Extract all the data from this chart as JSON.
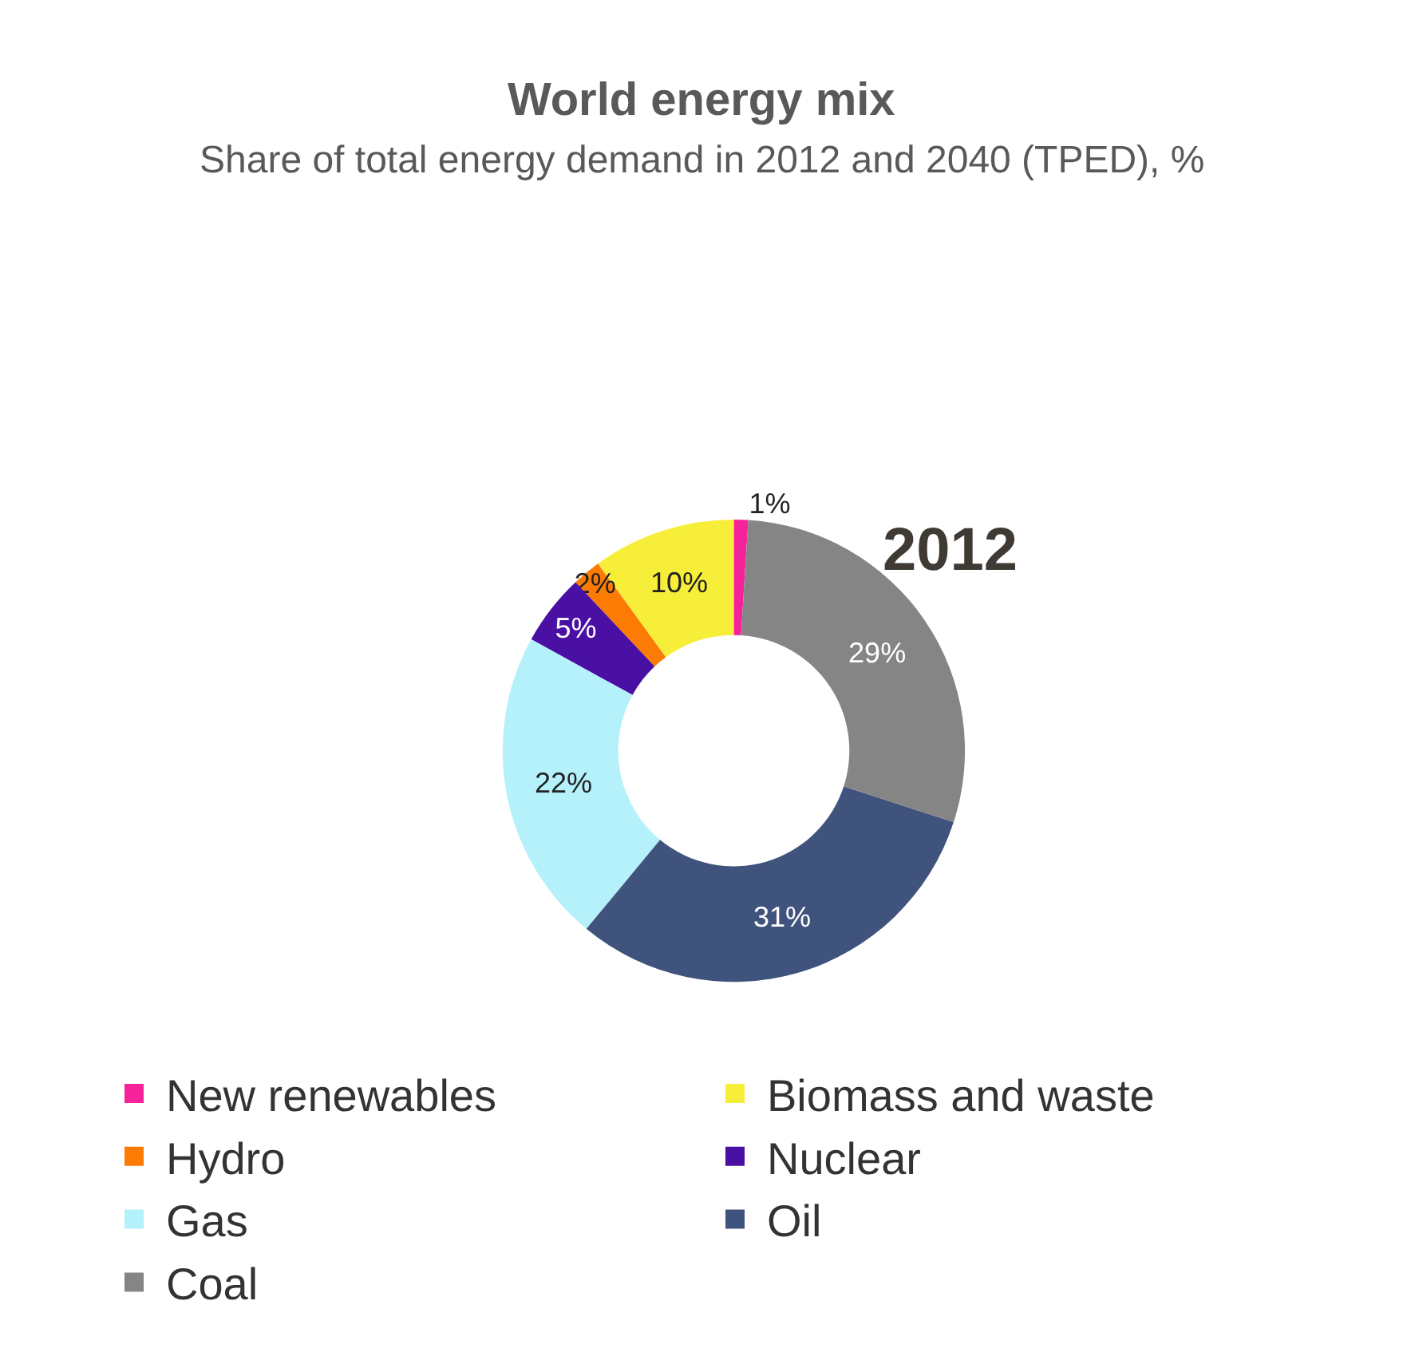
{
  "chart_data": {
    "type": "donut",
    "title": "World energy mix",
    "subtitle": "Share of total energy demand in 2012 and 2040 (TPED), %",
    "annotations": [
      "2012"
    ],
    "categories": [
      "New renewables",
      "Biomass and waste",
      "Hydro",
      "Nuclear",
      "Gas",
      "Oil",
      "Coal"
    ],
    "values": [
      1,
      10,
      2,
      5,
      22,
      31,
      29
    ],
    "value_labels": [
      "1%",
      "10%",
      "2%",
      "5%",
      "22%",
      "31%",
      "29%"
    ],
    "colors": [
      "#f5239a",
      "#f7ee3a",
      "#fb7b05",
      "#4a10a3",
      "#b4f1fb",
      "#3f537c",
      "#858585"
    ],
    "legend": "bottom"
  }
}
